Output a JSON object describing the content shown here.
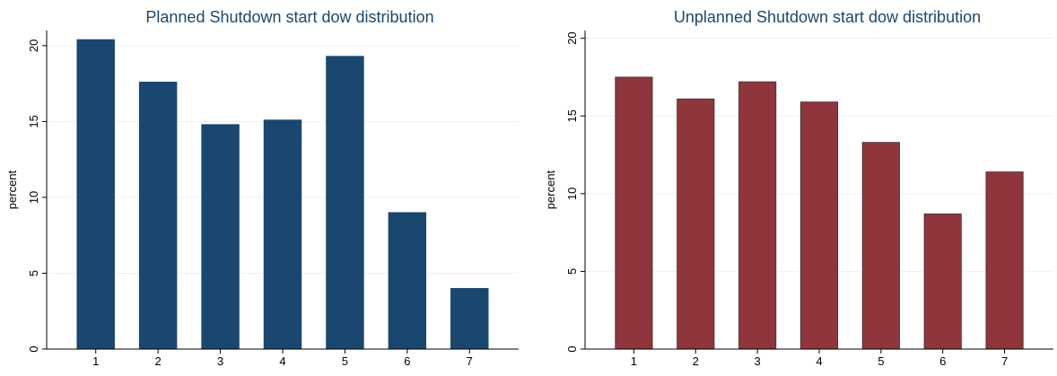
{
  "chart_data": [
    {
      "type": "bar",
      "title": "Planned Shutdown start dow distribution",
      "xlabel": "",
      "ylabel": "percent",
      "categories": [
        "1",
        "2",
        "3",
        "4",
        "5",
        "6",
        "7"
      ],
      "values": [
        20.4,
        17.6,
        14.8,
        15.1,
        19.3,
        9.0,
        4.0
      ],
      "ylim": [
        0,
        21
      ],
      "yticks": [
        "0",
        "5",
        "10",
        "15",
        "20"
      ],
      "grid": true,
      "color": "#1a476f"
    },
    {
      "type": "bar",
      "title": "Unplanned Shutdown start dow distribution",
      "xlabel": "",
      "ylabel": "percent",
      "categories": [
        "1",
        "2",
        "3",
        "4",
        "5",
        "6",
        "7"
      ],
      "values": [
        17.5,
        16.1,
        17.2,
        15.9,
        13.3,
        8.7,
        11.4
      ],
      "ylim": [
        0,
        20.5
      ],
      "yticks": [
        "0",
        "5",
        "10",
        "15",
        "20"
      ],
      "grid": true,
      "color": "#90353b"
    }
  ]
}
